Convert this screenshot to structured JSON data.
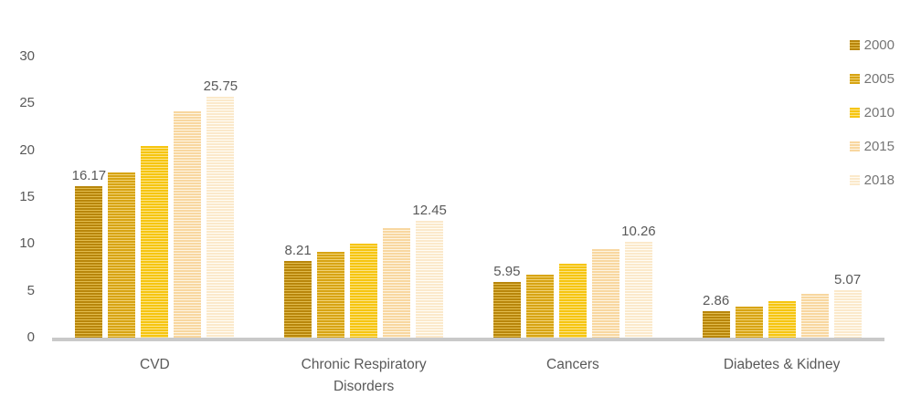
{
  "chart_data": {
    "type": "bar",
    "title": "",
    "xlabel": "",
    "ylabel": "",
    "categories": [
      "CVD",
      "Chronic Respiratory Disorders",
      "Cancers",
      "Diabetes & Kidney"
    ],
    "series": [
      {
        "name": "2000",
        "color_dark": "#B8860B",
        "color_light": "#E2BC4E",
        "values": [
          16.17,
          8.21,
          5.95,
          2.86
        ],
        "labels": [
          "16.17",
          "8.21",
          "5.95",
          "2.86"
        ]
      },
      {
        "name": "2005",
        "color_dark": "#D7A414",
        "color_light": "#F1D276",
        "values": [
          17.6,
          9.15,
          6.7,
          3.3
        ],
        "labels": null
      },
      {
        "name": "2010",
        "color_dark": "#F6C510",
        "color_light": "#FCE489",
        "values": [
          20.5,
          10.05,
          7.85,
          3.85
        ],
        "labels": null
      },
      {
        "name": "2015",
        "color_dark": "#F8D7A0",
        "color_light": "#FEF5E3",
        "values": [
          24.2,
          11.65,
          9.45,
          4.65
        ],
        "labels": null
      },
      {
        "name": "2018",
        "color_dark": "#FBE9CB",
        "color_light": "#FFFDF6",
        "values": [
          25.75,
          12.45,
          10.26,
          5.07
        ],
        "labels": [
          "25.75",
          "12.45",
          "10.26",
          "5.07"
        ]
      }
    ],
    "yticks": [
      0,
      5,
      10,
      15,
      20,
      25,
      30
    ],
    "ylim": [
      0,
      30
    ],
    "grid": false,
    "legend_position": "top-right",
    "text_color": "#595959",
    "axis_line_color": "#C9C9C9"
  }
}
